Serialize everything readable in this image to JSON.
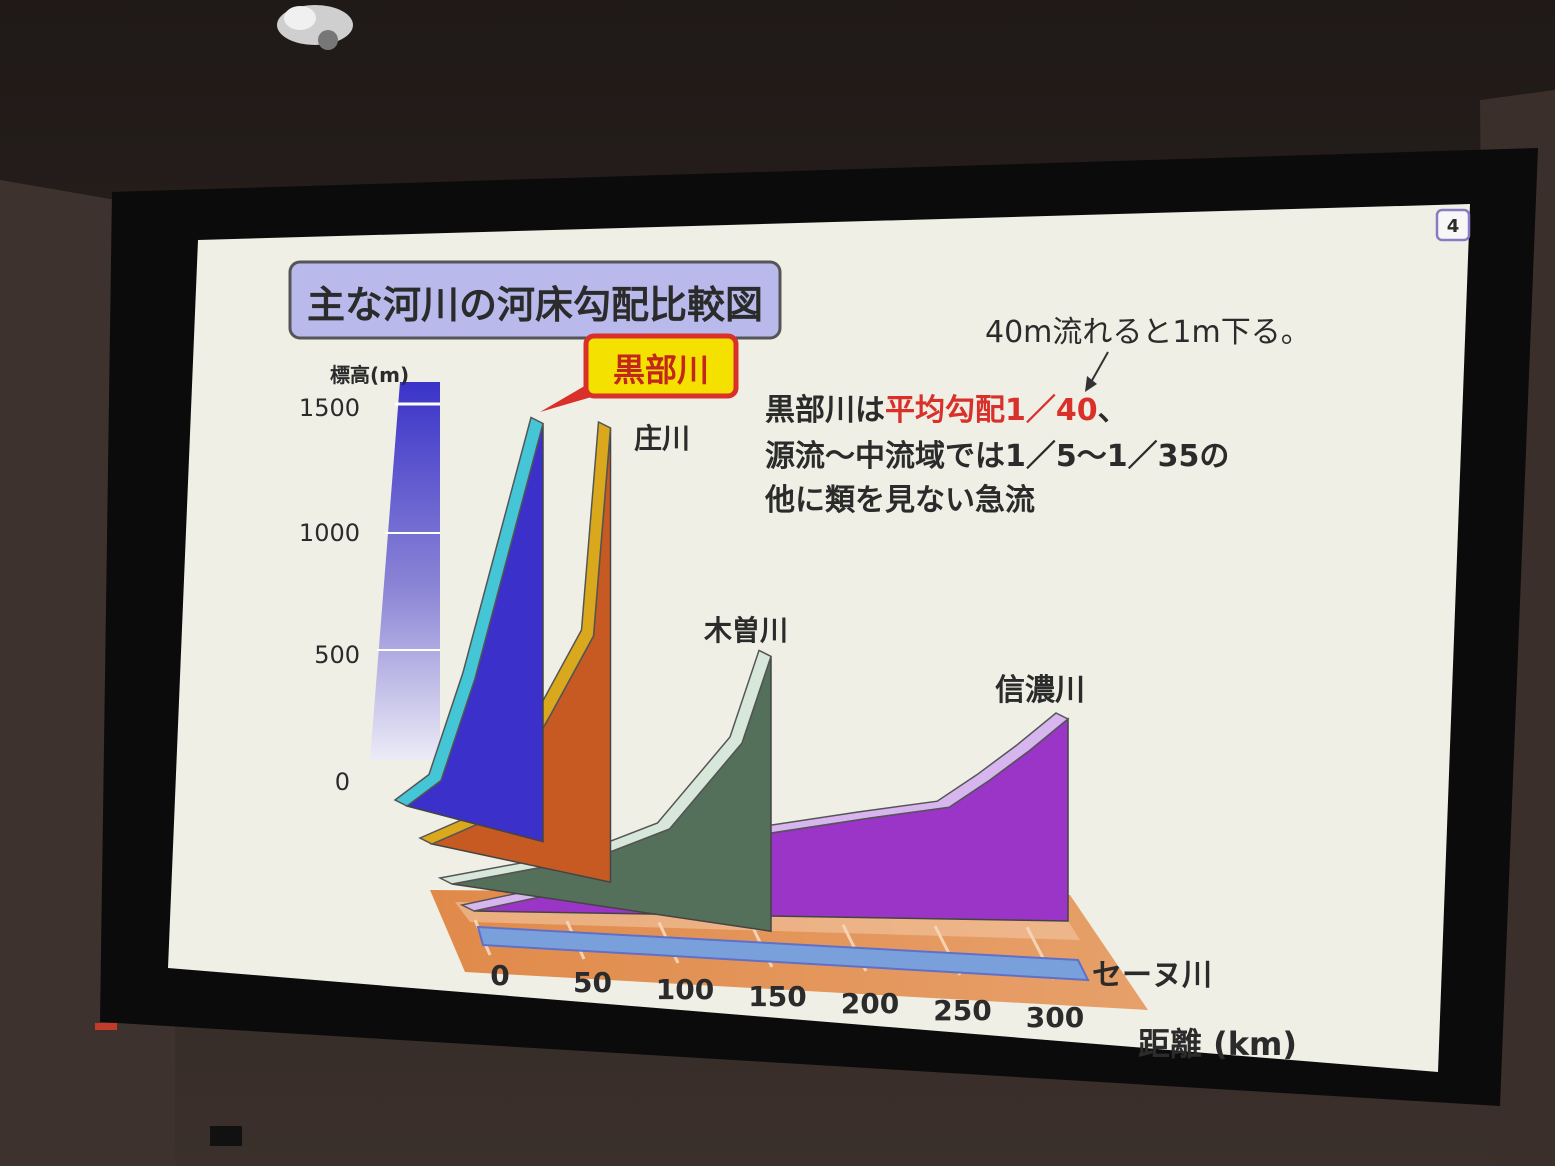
{
  "slide": {
    "page_number": "4",
    "title": "主な河川の河床勾配比較図",
    "callout": "黒部川",
    "note_arrow": "40m流れると1m下る。",
    "note_line1_prefix": "黒部川は",
    "note_line1_highlight": "平均勾配1／40",
    "note_line1_suffix": "、",
    "note_line2": "源流～中流域では1／5～1／35の",
    "note_line3": "他に類を見ない急流"
  },
  "colors": {
    "highlight": "#d9302a",
    "callout_bg": "#f5e100",
    "callout_border": "#d9302a",
    "title_bg": "#b9b9ec",
    "screen_bg": "#efefe6"
  },
  "chart_data": {
    "type": "area",
    "title": "主な河川の河床勾配比較図",
    "ylabel": "標高(m)",
    "xlabel": "距離 (km)",
    "ylim": [
      0,
      1500
    ],
    "xlim": [
      0,
      300
    ],
    "y_ticks": [
      "0",
      "500",
      "1000",
      "1500"
    ],
    "x_ticks": [
      "0",
      "50",
      "100",
      "150",
      "200",
      "250",
      "300"
    ],
    "series": [
      {
        "name": "黒部川",
        "color": "#3b30c9",
        "edge": "#44c6d6",
        "points": [
          [
            0,
            0
          ],
          [
            10,
            100
          ],
          [
            20,
            500
          ],
          [
            30,
            1000
          ],
          [
            40,
            1500
          ]
        ]
      },
      {
        "name": "庄川",
        "color": "#c65a22",
        "edge": "#d9a81c",
        "points": [
          [
            0,
            0
          ],
          [
            35,
            100
          ],
          [
            70,
            500
          ],
          [
            95,
            800
          ],
          [
            105,
            1600
          ]
        ]
      },
      {
        "name": "木曽川",
        "color": "#55705a",
        "edge": "#d7e8da",
        "points": [
          [
            0,
            0
          ],
          [
            100,
            100
          ],
          [
            150,
            200
          ],
          [
            200,
            500
          ],
          [
            220,
            800
          ]
        ]
      },
      {
        "name": "信濃川",
        "color": "#9a35c8",
        "edge": "#d7b5ef",
        "points": [
          [
            0,
            0
          ],
          [
            50,
            50
          ],
          [
            100,
            150
          ],
          [
            150,
            200
          ],
          [
            200,
            230
          ],
          [
            240,
            250
          ],
          [
            260,
            330
          ],
          [
            280,
            420
          ],
          [
            300,
            520
          ]
        ]
      },
      {
        "name": "セーヌ川",
        "color": "#7aa0dc",
        "edge": "#6070c8",
        "points": [
          [
            0,
            0
          ],
          [
            300,
            5
          ]
        ]
      }
    ]
  }
}
